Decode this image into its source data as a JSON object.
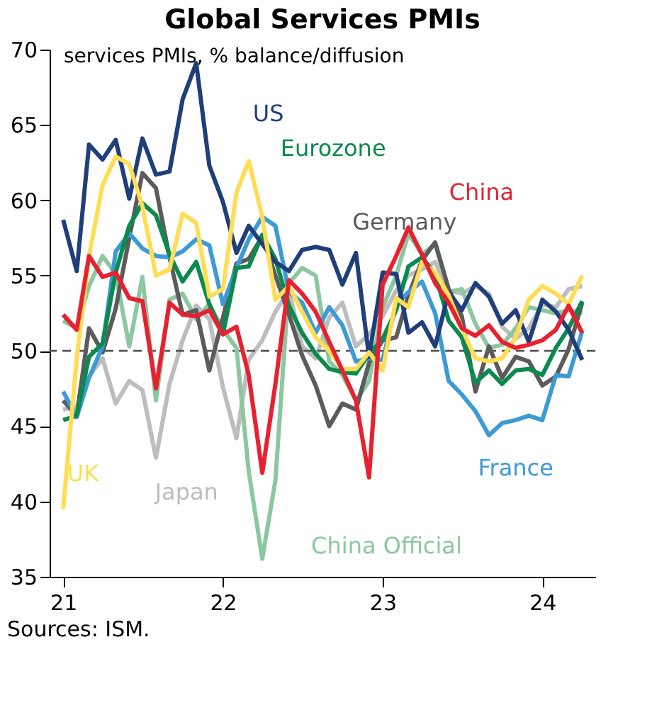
{
  "chart_data": {
    "type": "line",
    "title": "Global Services PMIs",
    "ylabel": "services PMIs, % balance/diffusion",
    "x": [
      "2021-01",
      "2021-02",
      "2021-03",
      "2021-04",
      "2021-05",
      "2021-06",
      "2021-07",
      "2021-08",
      "2021-09",
      "2021-10",
      "2021-11",
      "2021-12",
      "2022-01",
      "2022-02",
      "2022-03",
      "2022-04",
      "2022-05",
      "2022-06",
      "2022-07",
      "2022-08",
      "2022-09",
      "2022-10",
      "2022-11",
      "2022-12",
      "2023-01",
      "2023-02",
      "2023-03",
      "2023-04",
      "2023-05",
      "2023-06",
      "2023-07",
      "2023-08",
      "2023-09",
      "2023-10",
      "2023-11",
      "2023-12",
      "2024-01",
      "2024-02",
      "2024-03",
      "2024-04"
    ],
    "series": [
      {
        "name": "Japan",
        "color": "#bdbdbd",
        "values": [
          46.1,
          46.3,
          48.3,
          49.5,
          46.5,
          48.0,
          47.4,
          42.9,
          47.8,
          50.7,
          53.0,
          52.1,
          47.6,
          44.2,
          49.4,
          50.7,
          52.6,
          54.0,
          50.3,
          49.5,
          52.2,
          53.2,
          50.3,
          51.1,
          52.3,
          54.0,
          55.0,
          55.4,
          55.9,
          54.0,
          53.8,
          54.3,
          53.8,
          51.6,
          50.8,
          51.5,
          53.1,
          52.9,
          54.1,
          54.3
        ]
      },
      {
        "name": "China Official",
        "color": "#8cc7a0",
        "values": [
          52.0,
          51.5,
          54.3,
          56.3,
          55.1,
          50.3,
          54.9,
          46.7,
          53.4,
          53.8,
          52.1,
          53.1,
          51.4,
          50.2,
          42.0,
          36.2,
          41.4,
          54.5,
          55.5,
          55.0,
          49.3,
          48.4,
          46.7,
          48.0,
          52.9,
          55.0,
          57.8,
          56.4,
          57.1,
          53.9,
          54.1,
          51.8,
          50.2,
          50.4,
          51.5,
          52.9,
          52.7,
          52.5,
          52.7,
          52.5
        ]
      },
      {
        "name": "Germany",
        "color": "#5b5b5b",
        "values": [
          46.7,
          45.7,
          51.5,
          49.9,
          52.8,
          57.5,
          61.8,
          60.8,
          56.2,
          52.4,
          52.7,
          48.7,
          52.2,
          55.8,
          56.1,
          57.6,
          55.0,
          52.4,
          49.7,
          47.7,
          45.0,
          46.5,
          46.1,
          49.2,
          50.7,
          50.9,
          53.7,
          56.0,
          57.2,
          54.1,
          52.3,
          47.3,
          50.3,
          48.2,
          49.6,
          49.3,
          47.7,
          48.3,
          50.1,
          53.2
        ]
      },
      {
        "name": "France",
        "color": "#3d9ad6",
        "values": [
          47.3,
          45.6,
          48.2,
          50.3,
          56.6,
          57.8,
          56.8,
          56.3,
          56.2,
          56.6,
          57.4,
          57.0,
          53.1,
          55.5,
          57.4,
          58.9,
          58.3,
          53.9,
          53.2,
          51.2,
          52.9,
          51.7,
          49.3,
          49.5,
          49.4,
          53.1,
          53.9,
          54.6,
          52.5,
          48.0,
          47.1,
          46.0,
          44.4,
          45.2,
          45.4,
          45.7,
          45.4,
          48.4,
          48.3,
          51.3
        ]
      },
      {
        "name": "Eurozone",
        "color": "#0b8a4e",
        "values": [
          45.4,
          45.7,
          49.6,
          50.5,
          55.2,
          58.3,
          59.8,
          59.0,
          56.4,
          54.6,
          55.9,
          53.1,
          51.1,
          55.5,
          55.6,
          57.7,
          56.1,
          53.0,
          51.2,
          49.8,
          48.8,
          48.6,
          48.5,
          49.8,
          50.8,
          52.7,
          55.6,
          56.2,
          55.1,
          52.0,
          50.9,
          47.9,
          48.7,
          47.8,
          48.7,
          48.8,
          48.4,
          50.2,
          51.5,
          53.3
        ]
      },
      {
        "name": "US",
        "color": "#1f3f7a",
        "values": [
          58.7,
          55.3,
          63.7,
          62.7,
          64.0,
          60.1,
          64.1,
          61.7,
          61.9,
          66.7,
          69.1,
          62.3,
          59.9,
          56.5,
          58.3,
          57.1,
          55.9,
          55.3,
          56.7,
          56.9,
          56.7,
          54.4,
          56.5,
          49.6,
          55.2,
          55.1,
          51.2,
          51.9,
          50.3,
          53.9,
          52.7,
          54.5,
          53.6,
          51.8,
          52.7,
          50.6,
          53.4,
          52.6,
          51.4,
          49.4
        ]
      },
      {
        "name": "UK",
        "color": "#ffdd55",
        "values": [
          39.5,
          49.5,
          56.3,
          61.0,
          62.9,
          62.4,
          59.6,
          55.0,
          55.4,
          59.1,
          58.5,
          53.6,
          54.1,
          60.5,
          62.6,
          58.9,
          53.4,
          54.3,
          52.6,
          50.9,
          50.0,
          48.8,
          48.8,
          49.9,
          48.7,
          53.5,
          52.9,
          55.9,
          55.2,
          53.7,
          51.5,
          49.5,
          49.3,
          49.5,
          50.9,
          53.4,
          54.3,
          53.8,
          53.1,
          55.0
        ]
      },
      {
        "name": "China",
        "color": "#e8202f",
        "values": [
          52.4,
          51.4,
          56.3,
          54.9,
          55.2,
          53.5,
          53.3,
          47.5,
          53.2,
          52.4,
          52.3,
          52.7,
          51.1,
          51.6,
          48.4,
          41.9,
          47.8,
          54.7,
          53.8,
          52.6,
          50.6,
          48.7,
          46.7,
          41.6,
          54.4,
          56.3,
          58.2,
          56.4,
          54.5,
          53.2,
          51.5,
          51.0,
          51.7,
          50.6,
          50.2,
          50.4,
          50.7,
          51.4,
          53.0,
          51.2
        ]
      }
    ],
    "xlim": [
      "2020-12",
      "2024-05"
    ],
    "xticks": [
      {
        "value": "2021-01",
        "label": "21"
      },
      {
        "value": "2022-01",
        "label": "22"
      },
      {
        "value": "2023-01",
        "label": "23"
      },
      {
        "value": "2024-01",
        "label": "24"
      }
    ],
    "ylim": [
      35,
      70
    ],
    "yticks": [
      35,
      40,
      45,
      50,
      55,
      60,
      65,
      70
    ],
    "ref_lines": [
      {
        "axis": "y",
        "value": 50,
        "color": "#555555",
        "line_style": "dashed"
      }
    ],
    "grid": false,
    "legend": false,
    "line_style": "solid",
    "marker": "none",
    "annotations": [
      "Sources: ISM."
    ]
  }
}
